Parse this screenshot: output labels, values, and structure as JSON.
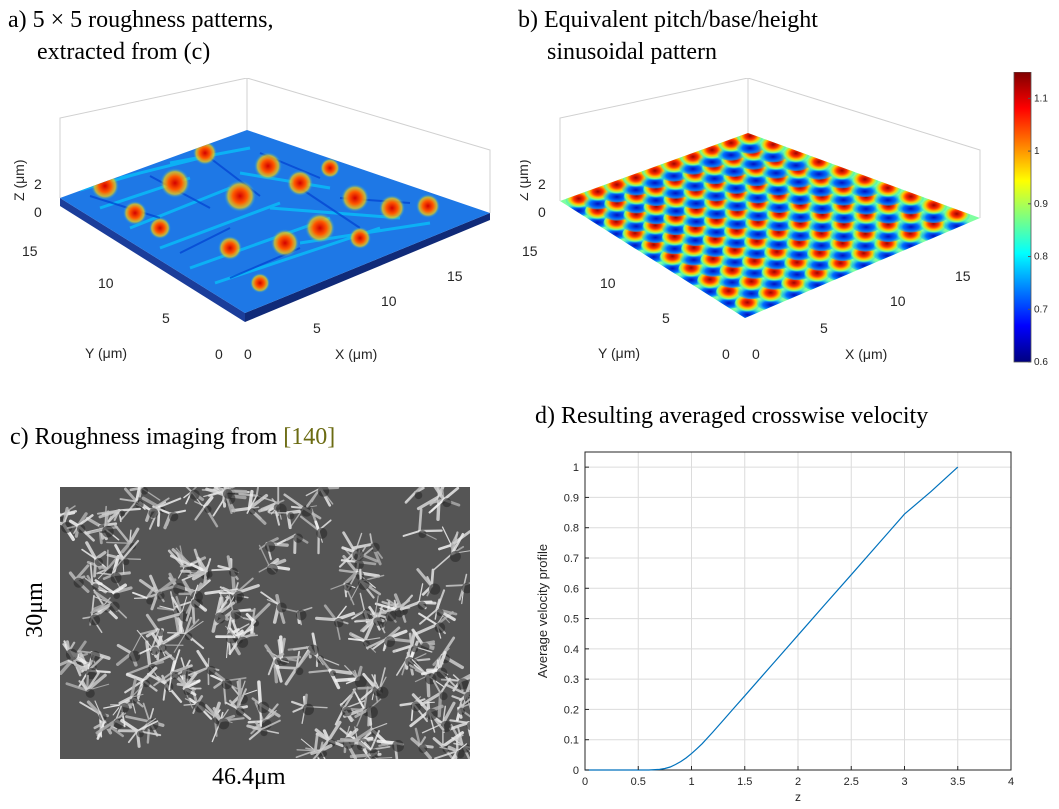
{
  "captions": {
    "a_line1": "a) 5 × 5 roughness patterns,",
    "a_line2": "extracted from (c)",
    "b_line1": "b) Equivalent pitch/base/height",
    "b_line2": "sinusoidal pattern",
    "c": "c) Roughness imaging from ",
    "c_cite": "[140]",
    "d": "d) Resulting averaged crosswise velocity"
  },
  "panel_3d": {
    "z_label": "Z (μm)",
    "y_label": "Y (μm)",
    "x_label": "X (μm)",
    "z_ticks": [
      "0",
      "2"
    ],
    "y_ticks": [
      "0",
      "5",
      "10",
      "15"
    ],
    "x_ticks": [
      "0",
      "5",
      "10",
      "15"
    ]
  },
  "colorbar": {
    "ticks": [
      "0.6",
      "0.7",
      "0.8",
      "0.9",
      "1",
      "1.1"
    ],
    "min": 0.6,
    "max": 1.15,
    "colors": [
      "#00007f",
      "#0000ff",
      "#007fff",
      "#00ffff",
      "#7fff7f",
      "#ffff00",
      "#ff7f00",
      "#ff0000",
      "#7f0000"
    ]
  },
  "sem": {
    "height_label": "30μm",
    "width_label": "46.4μm"
  },
  "chart_data": {
    "type": "line",
    "title": "d) Resulting averaged crosswise velocity",
    "xlabel": "z",
    "ylabel": "Average velocity profile",
    "xlim": [
      0,
      4
    ],
    "ylim": [
      0,
      1.05
    ],
    "x_ticks": [
      "0",
      "0.5",
      "1",
      "1.5",
      "2",
      "2.5",
      "3",
      "3.5",
      "4"
    ],
    "y_ticks": [
      "0",
      "0.1",
      "0.2",
      "0.3",
      "0.4",
      "0.5",
      "0.6",
      "0.7",
      "0.8",
      "0.9",
      "1"
    ],
    "grid": true,
    "series": [
      {
        "color": "#0072bd",
        "x": [
          0,
          0.5,
          0.6,
          0.7,
          0.75,
          0.8,
          0.85,
          0.9,
          0.95,
          1.0,
          1.05,
          1.1,
          1.2,
          1.3,
          1.4,
          1.5,
          1.75,
          2.0,
          2.25,
          2.5,
          2.75,
          3.0,
          3.25,
          3.5
        ],
        "y": [
          0,
          0,
          0.0,
          0.002,
          0.005,
          0.01,
          0.018,
          0.028,
          0.04,
          0.054,
          0.07,
          0.087,
          0.125,
          0.165,
          0.205,
          0.245,
          0.345,
          0.445,
          0.545,
          0.645,
          0.745,
          0.845,
          0.92,
          1.0
        ]
      }
    ]
  }
}
